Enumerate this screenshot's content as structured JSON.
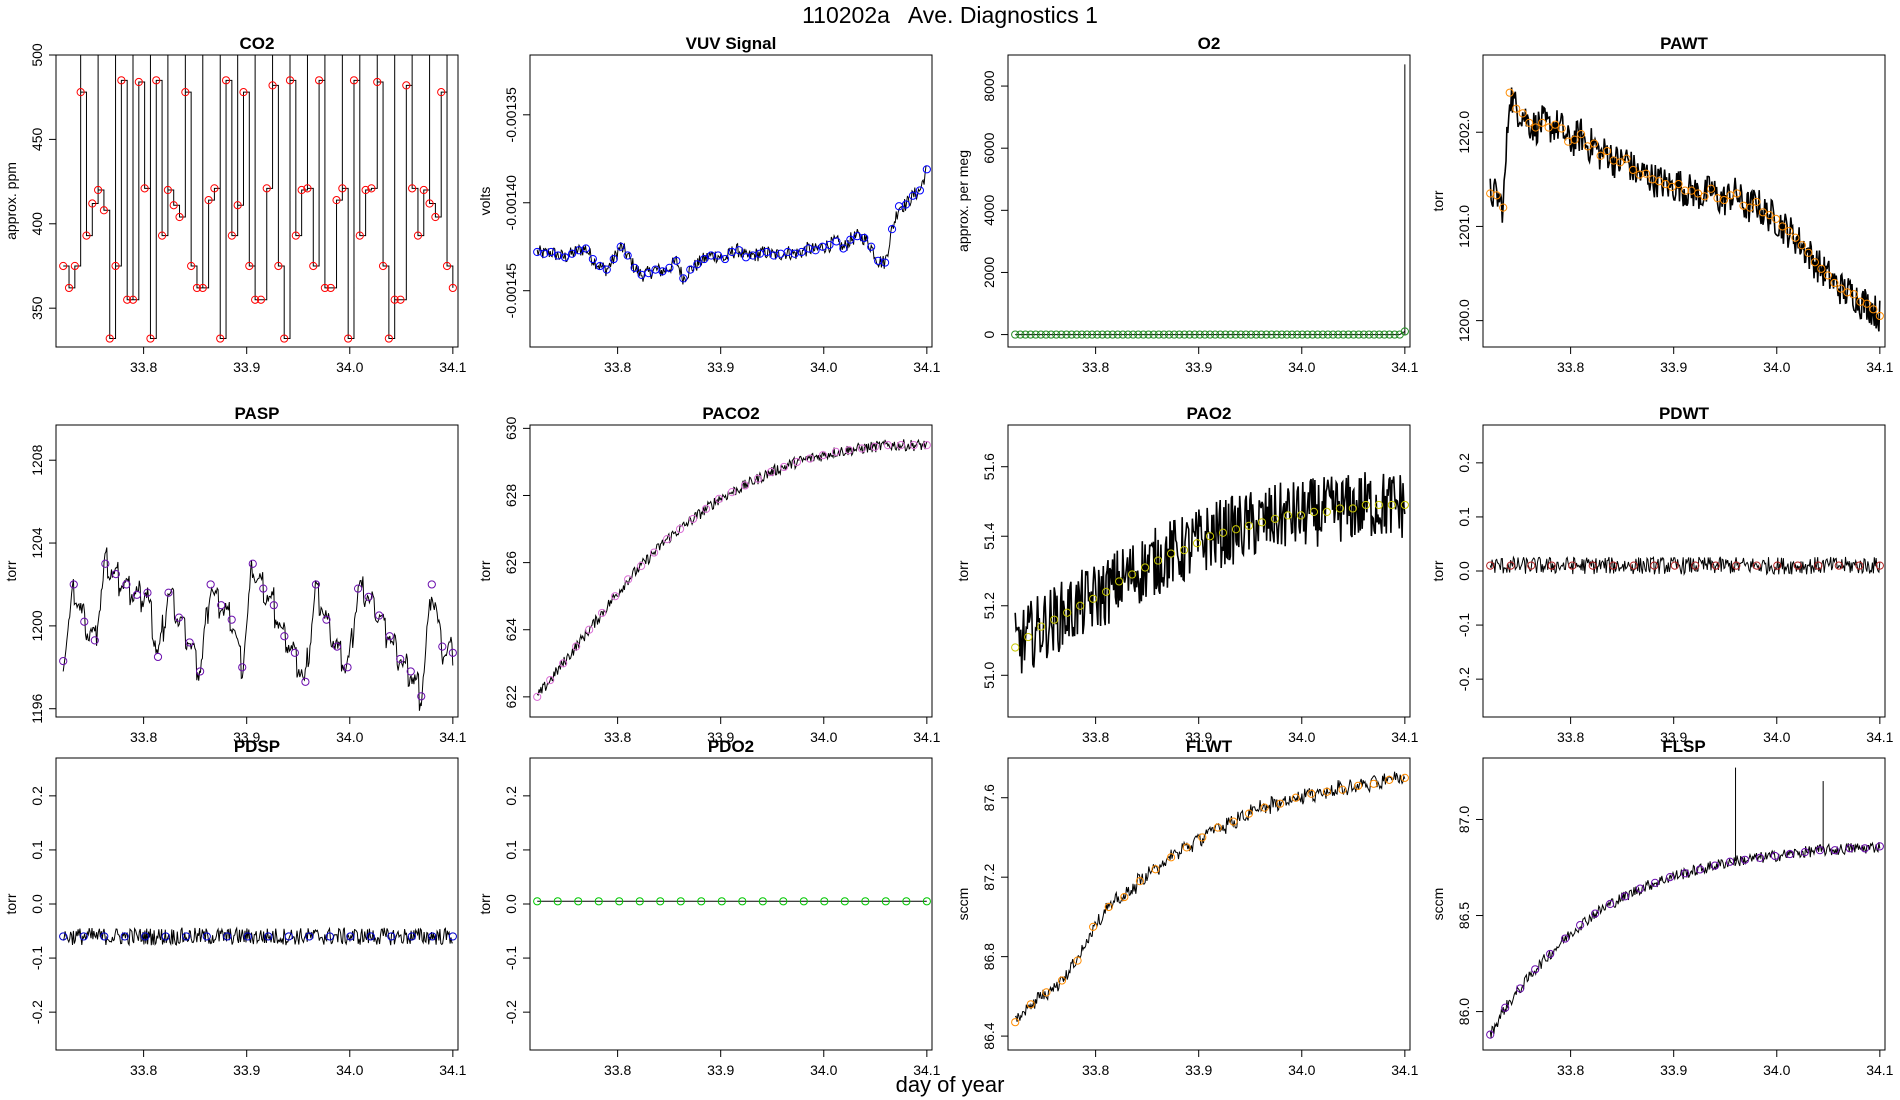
{
  "figure": {
    "run_id": "110202a",
    "title": "Ave. Diagnostics 1",
    "xlabel": "day of year"
  },
  "chart_data": [
    {
      "type": "line",
      "name": "CO2",
      "title": "CO2",
      "xlabel": "day of year",
      "ylabel": "approx. ppm",
      "xlim": [
        33.715,
        34.105
      ],
      "ylim": [
        327,
        500
      ],
      "xticks": [
        "33.8",
        "33.9",
        "34.0",
        "34.1"
      ],
      "yticks": [
        "350",
        "400",
        "450",
        "500"
      ],
      "marker_color": "#ff0000",
      "line_style": "steps",
      "x_start": 33.722,
      "x_end": 34.1,
      "values": [
        375,
        362,
        375,
        478,
        393,
        412,
        420,
        408,
        332,
        375,
        485,
        355,
        355,
        484,
        421,
        332,
        485,
        393,
        420,
        411,
        404,
        478,
        375,
        362,
        362,
        414,
        421,
        332,
        485,
        393,
        411,
        478,
        375,
        355,
        355,
        421,
        482,
        375,
        332,
        485,
        393,
        420,
        421,
        375,
        485,
        362,
        362,
        414,
        421,
        332,
        485,
        393,
        420,
        421,
        484,
        375,
        332,
        355,
        355,
        482,
        421,
        393,
        420,
        412,
        404,
        478,
        375,
        362
      ]
    },
    {
      "type": "line",
      "name": "VUV Signal",
      "title": "VUV Signal",
      "xlabel": "day of year",
      "ylabel": "volts",
      "xlim": [
        33.715,
        34.105
      ],
      "ylim": [
        -0.001482,
        -0.001316
      ],
      "xticks": [
        "33.8",
        "33.9",
        "34.0",
        "34.1"
      ],
      "yticks": [
        "-0.00145",
        "-0.00140",
        "-0.00135"
      ],
      "marker_color": "#0000ff",
      "x_start": 33.722,
      "x_end": 34.1,
      "values": [
        -0.001428,
        -0.001429,
        -0.001428,
        -0.00143,
        -0.001431,
        -0.001429,
        -0.001427,
        -0.001426,
        -0.001432,
        -0.001436,
        -0.001438,
        -0.001432,
        -0.001425,
        -0.00143,
        -0.001437,
        -0.001441,
        -0.00144,
        -0.001438,
        -0.001439,
        -0.001437,
        -0.001433,
        -0.001443,
        -0.001438,
        -0.001435,
        -0.001432,
        -0.00143,
        -0.00143,
        -0.001432,
        -0.001428,
        -0.001427,
        -0.001431,
        -0.00143,
        -0.001429,
        -0.001428,
        -0.00143,
        -0.001429,
        -0.001428,
        -0.001429,
        -0.001428,
        -0.001426,
        -0.001427,
        -0.001425,
        -0.001424,
        -0.001422,
        -0.001426,
        -0.001421,
        -0.001419,
        -0.00142,
        -0.001425,
        -0.001433,
        -0.001434,
        -0.001415,
        -0.001402,
        -0.001401,
        -0.001396,
        -0.001393,
        -0.001381
      ]
    },
    {
      "type": "line",
      "name": "O2",
      "title": "O2",
      "xlabel": "day of year",
      "ylabel": "approx. per meg",
      "xlim": [
        33.715,
        34.105
      ],
      "ylim": [
        -400,
        9000
      ],
      "xticks": [
        "33.8",
        "33.9",
        "34.0",
        "34.1"
      ],
      "yticks": [
        "0",
        "2000",
        "4000",
        "6000",
        "8000"
      ],
      "marker_color": "#228b22",
      "x_start": 33.722,
      "x_end": 34.1,
      "values": [
        0,
        0,
        0,
        0,
        0,
        0,
        0,
        0,
        0,
        0,
        0,
        0,
        0,
        0,
        0,
        0,
        0,
        0,
        0,
        0,
        0,
        0,
        0,
        0,
        0,
        0,
        0,
        0,
        0,
        0,
        0,
        0,
        0,
        0,
        0,
        0,
        0,
        0,
        0,
        0,
        0,
        0,
        0,
        0,
        0,
        0,
        0,
        0,
        0,
        0,
        0,
        0,
        0,
        0,
        0,
        0,
        0,
        0,
        0,
        0,
        0,
        0,
        0,
        0,
        0,
        0,
        0,
        0,
        0,
        0,
        0,
        0,
        0,
        0,
        0,
        0,
        100
      ],
      "spike": {
        "x": 34.1,
        "y": 8700
      }
    },
    {
      "type": "line",
      "name": "PAWT",
      "title": "PAWT",
      "xlabel": "day of year",
      "ylabel": "torr",
      "xlim": [
        33.715,
        34.105
      ],
      "ylim": [
        1199.72,
        1202.82
      ],
      "xticks": [
        "33.8",
        "33.9",
        "34.0",
        "34.1"
      ],
      "yticks": [
        "1200.0",
        "1201.0",
        "1202.0"
      ],
      "marker_color": "#ff8c00",
      "x_start": 33.722,
      "x_end": 34.1,
      "values": [
        1201.35,
        1201.33,
        1201.2,
        1202.42,
        1202.25,
        1202.2,
        1202.1,
        1202.05,
        1202.1,
        1202.05,
        1202.08,
        1202.04,
        1201.9,
        1201.92,
        1201.98,
        1201.85,
        1201.88,
        1201.75,
        1201.8,
        1201.7,
        1201.68,
        1201.72,
        1201.6,
        1201.55,
        1201.56,
        1201.5,
        1201.48,
        1201.45,
        1201.42,
        1201.45,
        1201.38,
        1201.38,
        1201.35,
        1201.32,
        1201.4,
        1201.3,
        1201.28,
        1201.33,
        1201.35,
        1201.22,
        1201.2,
        1201.26,
        1201.15,
        1201.12,
        1201.08,
        1201.0,
        1200.95,
        1200.88,
        1200.8,
        1200.72,
        1200.62,
        1200.55,
        1200.48,
        1200.4,
        1200.34,
        1200.3,
        1200.28,
        1200.2,
        1200.18,
        1200.12,
        1200.05
      ]
    },
    {
      "type": "line",
      "name": "PASP",
      "title": "PASP",
      "xlabel": "day of year",
      "ylabel": "torr",
      "xlim": [
        33.715,
        34.105
      ],
      "ylim": [
        1195.6,
        1209.7
      ],
      "xticks": [
        "33.8",
        "33.9",
        "34.0",
        "34.1"
      ],
      "yticks": [
        "1196",
        "1200",
        "1204",
        "1208"
      ],
      "marker_color": "#6a0dad",
      "line_style": "sawtooth",
      "x_start": 33.722,
      "x_end": 34.1,
      "values": [
        1198.3,
        1202.0,
        1200.2,
        1199.3,
        1203.0,
        1202.5,
        1202.0,
        1201.5,
        1201.6,
        1198.5,
        1201.6,
        1200.4,
        1199.2,
        1197.8,
        1202.0,
        1201.0,
        1200.3,
        1198.0,
        1203.0,
        1201.8,
        1201.0,
        1199.5,
        1198.7,
        1197.3,
        1202.0,
        1200.3,
        1199.0,
        1198.0,
        1201.8,
        1201.4,
        1200.5,
        1199.5,
        1198.4,
        1197.8,
        1196.6,
        1202.0,
        1199.0,
        1198.7
      ]
    },
    {
      "type": "line",
      "name": "PACO2",
      "title": "PACO2",
      "xlabel": "day of year",
      "ylabel": "torr",
      "xlim": [
        33.715,
        34.105
      ],
      "ylim": [
        621.4,
        630.1
      ],
      "xticks": [
        "33.8",
        "33.9",
        "34.0",
        "34.1"
      ],
      "yticks": [
        "622",
        "624",
        "626",
        "628",
        "630"
      ],
      "marker_color": "#da70d6",
      "x_start": 33.722,
      "x_end": 34.1,
      "values": [
        622.0,
        622.5,
        623.0,
        623.5,
        624.0,
        624.5,
        625.0,
        625.5,
        625.9,
        626.3,
        626.7,
        627.0,
        627.3,
        627.6,
        627.9,
        628.1,
        628.3,
        628.5,
        628.7,
        628.85,
        629.0,
        629.1,
        629.2,
        629.3,
        629.35,
        629.4,
        629.45,
        629.5,
        629.5,
        629.5,
        629.5
      ]
    },
    {
      "type": "line",
      "name": "PAO2",
      "title": "PAO2",
      "xlabel": "day of year",
      "ylabel": "torr",
      "xlim": [
        33.715,
        34.105
      ],
      "ylim": [
        50.88,
        51.72
      ],
      "xticks": [
        "33.8",
        "33.9",
        "34.0",
        "34.1"
      ],
      "yticks": [
        "51.0",
        "51.2",
        "51.4",
        "51.6"
      ],
      "marker_color": "#c8c800",
      "x_start": 33.722,
      "x_end": 34.1,
      "values": [
        51.08,
        51.11,
        51.14,
        51.16,
        51.18,
        51.2,
        51.22,
        51.24,
        51.27,
        51.29,
        51.31,
        51.33,
        51.35,
        51.36,
        51.38,
        51.4,
        51.41,
        51.42,
        51.43,
        51.44,
        51.45,
        51.46,
        51.46,
        51.47,
        51.47,
        51.48,
        51.48,
        51.49,
        51.49,
        51.49,
        51.49
      ]
    },
    {
      "type": "line",
      "name": "PDWT",
      "title": "PDWT",
      "xlabel": "day of year",
      "ylabel": "torr",
      "xlim": [
        33.715,
        34.105
      ],
      "ylim": [
        -0.27,
        0.27
      ],
      "xticks": [
        "33.8",
        "33.9",
        "34.0",
        "34.1"
      ],
      "yticks": [
        "-0.2",
        "-0.1",
        "0.0",
        "0.1",
        "0.2"
      ],
      "marker_color": "#b22222",
      "x_start": 33.722,
      "x_end": 34.1,
      "values": [
        0.01,
        0.01,
        0.01,
        0.01,
        0.01,
        0.01,
        0.01,
        0.01,
        0.01,
        0.01,
        0.01,
        0.01,
        0.01,
        0.01,
        0.01,
        0.01,
        0.01,
        0.01,
        0.01,
        0.01
      ]
    },
    {
      "type": "line",
      "name": "PDSP",
      "title": "PDSP",
      "xlabel": "day of year",
      "ylabel": "torr",
      "xlim": [
        33.715,
        34.105
      ],
      "ylim": [
        -0.27,
        0.27
      ],
      "xticks": [
        "33.8",
        "33.9",
        "34.0",
        "34.1"
      ],
      "yticks": [
        "-0.2",
        "-0.1",
        "0.0",
        "0.1",
        "0.2"
      ],
      "marker_color": "#0000cd",
      "x_start": 33.722,
      "x_end": 34.1,
      "values": [
        -0.06,
        -0.06,
        -0.06,
        -0.06,
        -0.06,
        -0.06,
        -0.06,
        -0.06,
        -0.06,
        -0.06,
        -0.06,
        -0.06,
        -0.06,
        -0.06,
        -0.06,
        -0.06,
        -0.06,
        -0.06,
        -0.06,
        -0.06
      ]
    },
    {
      "type": "line",
      "name": "PDO2",
      "title": "PDO2",
      "xlabel": "day of year",
      "ylabel": "torr",
      "xlim": [
        33.715,
        34.105
      ],
      "ylim": [
        -0.27,
        0.27
      ],
      "xticks": [
        "33.8",
        "33.9",
        "34.0",
        "34.1"
      ],
      "yticks": [
        "-0.2",
        "-0.1",
        "0.0",
        "0.1",
        "0.2"
      ],
      "marker_color": "#00c800",
      "x_start": 33.722,
      "x_end": 34.1,
      "values": [
        0.005,
        0.005,
        0.005,
        0.005,
        0.005,
        0.005,
        0.005,
        0.005,
        0.005,
        0.005,
        0.005,
        0.005,
        0.005,
        0.005,
        0.005,
        0.005,
        0.005,
        0.005,
        0.005,
        0.005
      ]
    },
    {
      "type": "line",
      "name": "FLWT",
      "title": "FLWT",
      "xlabel": "day of year",
      "ylabel": "sccm",
      "xlim": [
        33.715,
        34.105
      ],
      "ylim": [
        86.33,
        87.8
      ],
      "xticks": [
        "33.8",
        "33.9",
        "34.0",
        "34.1"
      ],
      "yticks": [
        "86.4",
        "86.8",
        "87.2",
        "87.6"
      ],
      "marker_color": "#ff8c00",
      "line_style": "sawtooth",
      "x_start": 33.722,
      "x_end": 34.1,
      "values": [
        86.47,
        86.56,
        86.62,
        86.68,
        86.78,
        86.95,
        87.05,
        87.1,
        87.18,
        87.24,
        87.3,
        87.35,
        87.4,
        87.45,
        87.48,
        87.52,
        87.55,
        87.57,
        87.6,
        87.62,
        87.63,
        87.64,
        87.66,
        87.67,
        87.69,
        87.7
      ]
    },
    {
      "type": "line",
      "name": "FLSP",
      "title": "FLSP",
      "xlabel": "day of year",
      "ylabel": "sccm",
      "xlim": [
        33.715,
        34.105
      ],
      "ylim": [
        85.8,
        87.32
      ],
      "xticks": [
        "33.8",
        "33.9",
        "34.0",
        "34.1"
      ],
      "yticks": [
        "86.0",
        "86.5",
        "87.0"
      ],
      "marker_color": "#6a0dad",
      "x_start": 33.722,
      "x_end": 34.1,
      "values": [
        85.88,
        86.02,
        86.12,
        86.22,
        86.3,
        86.38,
        86.45,
        86.51,
        86.56,
        86.6,
        86.64,
        86.67,
        86.7,
        86.72,
        86.74,
        86.76,
        86.78,
        86.79,
        86.8,
        86.81,
        86.82,
        86.83,
        86.84,
        86.84,
        86.85,
        86.85,
        86.86
      ],
      "spikes": [
        {
          "x": 33.96,
          "y": 87.27
        },
        {
          "x": 34.045,
          "y": 87.2
        }
      ]
    }
  ]
}
